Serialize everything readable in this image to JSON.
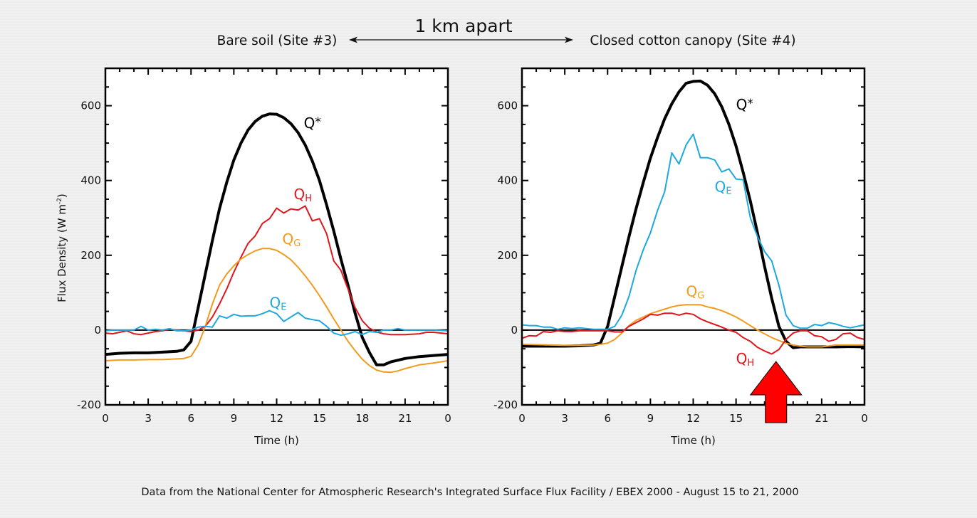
{
  "header": {
    "left_site": "Bare soil (Site #3)",
    "center": "1 km apart",
    "right_site": "Closed cotton canopy (Site #4)"
  },
  "footnote": "Data from the National Center for Atmospheric Research's Integrated Surface Flux Facility / EBEX 2000 - August 15 to 21, 2000",
  "colors": {
    "Q*": "#000000",
    "QH": "#e0161d",
    "QG": "#f39a1e",
    "QE": "#1ea8e0",
    "arrow": "#ff0000"
  },
  "chart_data": [
    {
      "type": "line",
      "title": "Bare soil (Site #3)",
      "xlabel": "Time (h)",
      "ylabel": "Flux Density (W m-2)",
      "ylabel_main": "Flux Density (W m",
      "ylabel_sup": "-2",
      "ylabel_close": ")",
      "xlim": [
        0,
        24
      ],
      "ylim": [
        -200,
        700
      ],
      "xticks": [
        0,
        3,
        6,
        9,
        12,
        15,
        18,
        21,
        24
      ],
      "xtick_labels": [
        "0",
        "3",
        "6",
        "9",
        "12",
        "15",
        "18",
        "21",
        "0"
      ],
      "yticks": [
        -200,
        0,
        200,
        400,
        600
      ],
      "ytick_labels": [
        "-200",
        "0",
        "200",
        "400",
        "600"
      ],
      "grid": false,
      "zero_line": true,
      "series": [
        {
          "name": "Q*",
          "label_main": "Q",
          "label_sub": "*",
          "label_at": [
            13.9,
            540
          ],
          "x": [
            0,
            1,
            2,
            3,
            4,
            5,
            5.5,
            6,
            6.5,
            7,
            7.5,
            8,
            8.5,
            9,
            9.5,
            10,
            10.5,
            11,
            11.5,
            12,
            12.5,
            13,
            13.5,
            14,
            14.5,
            15,
            15.5,
            16,
            16.5,
            17,
            17.5,
            18,
            18.5,
            19,
            19.5,
            20,
            21,
            22,
            23,
            24
          ],
          "y": [
            -65,
            -62,
            -61,
            -61,
            -59,
            -57,
            -53,
            -30,
            60,
            150,
            240,
            325,
            395,
            455,
            500,
            535,
            558,
            572,
            578,
            577,
            568,
            552,
            528,
            495,
            452,
            400,
            335,
            265,
            190,
            120,
            45,
            -20,
            -60,
            -93,
            -93,
            -85,
            -76,
            -71,
            -68,
            -65
          ]
        },
        {
          "name": "QH",
          "label_main": "Q",
          "label_sub": "H",
          "label_at": [
            13.2,
            350
          ],
          "x": [
            0,
            0.5,
            1,
            1.5,
            2,
            2.5,
            3,
            3.5,
            4,
            4.5,
            5,
            5.5,
            6,
            6.5,
            7,
            7.5,
            8,
            8.5,
            9,
            9.5,
            10,
            10.5,
            11,
            11.5,
            12,
            12.5,
            13,
            13.5,
            14,
            14.5,
            15,
            15.5,
            16,
            16.5,
            17,
            17.5,
            18,
            18.5,
            19,
            19.5,
            20,
            21,
            22,
            22.5,
            23,
            24
          ],
          "y": [
            -8,
            -10,
            -6,
            -2,
            -10,
            -12,
            -8,
            -4,
            -2,
            2,
            0,
            -2,
            -4,
            0,
            10,
            35,
            70,
            110,
            155,
            195,
            232,
            252,
            285,
            298,
            326,
            313,
            324,
            321,
            332,
            292,
            298,
            258,
            185,
            160,
            110,
            60,
            25,
            5,
            -5,
            -10,
            -12,
            -12,
            -10,
            -6,
            -6,
            -10
          ]
        },
        {
          "name": "QG",
          "label_main": "Q",
          "label_sub": "G",
          "label_at": [
            12.4,
            230
          ],
          "x": [
            0,
            1,
            2,
            3,
            4,
            5,
            5.5,
            6,
            6.5,
            7,
            7.5,
            8,
            8.5,
            9,
            9.5,
            10,
            10.5,
            11,
            11.5,
            12,
            12.5,
            13,
            13.5,
            14,
            14.5,
            15,
            15.5,
            16,
            16.5,
            17,
            17.5,
            18,
            18.5,
            19,
            19.5,
            20,
            20.5,
            21,
            22,
            23,
            24
          ],
          "y": [
            -82,
            -80,
            -80,
            -79,
            -79,
            -77,
            -76,
            -70,
            -40,
            10,
            70,
            120,
            150,
            172,
            190,
            202,
            212,
            218,
            218,
            213,
            202,
            188,
            168,
            145,
            120,
            92,
            62,
            30,
            0,
            -30,
            -55,
            -78,
            -95,
            -107,
            -112,
            -113,
            -109,
            -103,
            -93,
            -88,
            -82
          ]
        },
        {
          "name": "QE",
          "label_main": "Q",
          "label_sub": "E",
          "label_at": [
            11.5,
            60
          ],
          "x": [
            0,
            0.5,
            1,
            1.5,
            2,
            2.5,
            3,
            3.5,
            4,
            4.5,
            5,
            5.5,
            6,
            6.5,
            7,
            7.5,
            8,
            8.5,
            9,
            9.5,
            10,
            10.5,
            11,
            11.5,
            12,
            12.5,
            13,
            13.5,
            14,
            14.5,
            15,
            15.5,
            16,
            16.5,
            17,
            17.5,
            18,
            18.5,
            19,
            19.5,
            20,
            20.5,
            21,
            21.5,
            22,
            22.5,
            23,
            24
          ],
          "y": [
            -2,
            0,
            0,
            0,
            0,
            10,
            0,
            2,
            0,
            4,
            -2,
            -2,
            0,
            8,
            10,
            8,
            38,
            32,
            42,
            37,
            38,
            38,
            44,
            52,
            44,
            23,
            35,
            47,
            32,
            28,
            25,
            10,
            -8,
            -14,
            -10,
            -4,
            -12,
            -4,
            -6,
            0,
            0,
            4,
            0,
            0,
            0,
            0,
            0,
            -2
          ]
        }
      ],
      "annotations": []
    },
    {
      "type": "line",
      "title": "Closed cotton canopy (Site #4)",
      "xlabel": "Time (h)",
      "ylabel": "",
      "xlim": [
        0,
        24
      ],
      "ylim": [
        -200,
        700
      ],
      "xticks": [
        0,
        3,
        6,
        9,
        12,
        15,
        18,
        21,
        24
      ],
      "xtick_labels": [
        "0",
        "3",
        "6",
        "9",
        "12",
        "15",
        "18",
        "21",
        "0"
      ],
      "yticks": [
        -200,
        0,
        200,
        400,
        600
      ],
      "ytick_labels": [
        "-200",
        "0",
        "200",
        "400",
        "600"
      ],
      "grid": false,
      "zero_line": true,
      "series": [
        {
          "name": "Q*",
          "label_main": "Q",
          "label_sub": "*",
          "label_at": [
            15.0,
            590
          ],
          "x": [
            0,
            1,
            2,
            3,
            4,
            5,
            5.5,
            6,
            6.5,
            7,
            7.5,
            8,
            8.5,
            9,
            9.5,
            10,
            10.5,
            11,
            11.5,
            12,
            12.5,
            13,
            13.5,
            14,
            14.5,
            15,
            15.5,
            16,
            16.5,
            17,
            17.5,
            18,
            18.5,
            19,
            19.5,
            20,
            21,
            22,
            23,
            24
          ],
          "y": [
            -43,
            -43,
            -43,
            -43,
            -42,
            -40,
            -35,
            10,
            90,
            170,
            250,
            325,
            395,
            460,
            515,
            565,
            605,
            637,
            660,
            665,
            666,
            655,
            632,
            597,
            550,
            492,
            422,
            345,
            260,
            170,
            85,
            10,
            -30,
            -47,
            -45,
            -45,
            -45,
            -45,
            -44,
            -45
          ]
        },
        {
          "name": "QE",
          "label_main": "Q",
          "label_sub": "E",
          "label_at": [
            13.5,
            370
          ],
          "x": [
            0,
            0.5,
            1,
            1.5,
            2,
            2.5,
            3,
            3.5,
            4,
            4.5,
            5,
            5.5,
            6,
            6.5,
            7,
            7.5,
            8,
            8.5,
            9,
            9.5,
            10,
            10.5,
            11,
            11.5,
            12,
            12.5,
            13,
            13.5,
            14,
            14.5,
            15,
            15.5,
            16,
            16.5,
            17,
            17.5,
            18,
            18.5,
            19,
            19.5,
            20,
            20.5,
            21,
            21.5,
            22,
            22.5,
            23,
            23.5,
            24
          ],
          "y": [
            14,
            12,
            12,
            8,
            8,
            2,
            6,
            4,
            6,
            4,
            2,
            2,
            2,
            10,
            40,
            90,
            160,
            215,
            260,
            320,
            370,
            474,
            444,
            495,
            524,
            461,
            461,
            455,
            423,
            431,
            404,
            402,
            300,
            250,
            210,
            185,
            120,
            40,
            12,
            5,
            5,
            15,
            12,
            20,
            16,
            10,
            6,
            10,
            14
          ]
        },
        {
          "name": "QG",
          "label_main": "Q",
          "label_sub": "G",
          "label_at": [
            11.5,
            90
          ],
          "x": [
            0,
            1,
            2,
            3,
            4,
            5,
            5.5,
            6,
            6.5,
            7,
            7.5,
            8,
            8.5,
            9,
            9.5,
            10,
            10.5,
            11,
            11.5,
            12,
            12.5,
            13,
            13.5,
            14,
            14.5,
            15,
            15.5,
            16,
            16.5,
            17,
            17.5,
            18,
            18.5,
            19,
            19.5,
            20,
            20.5,
            21,
            22,
            23,
            24
          ],
          "y": [
            -38,
            -39,
            -40,
            -41,
            -41,
            -40,
            -38,
            -35,
            -25,
            -8,
            12,
            26,
            35,
            44,
            50,
            56,
            62,
            66,
            68,
            68,
            68,
            62,
            58,
            52,
            44,
            35,
            24,
            12,
            0,
            -10,
            -20,
            -28,
            -35,
            -40,
            -43,
            -45,
            -45,
            -45,
            -40,
            -40,
            -40
          ]
        },
        {
          "name": "QH",
          "label_main": "Q",
          "label_sub": "H",
          "label_at": [
            15.0,
            -90
          ],
          "x": [
            0,
            0.5,
            1,
            1.5,
            2,
            2.5,
            3,
            3.5,
            4,
            4.5,
            5,
            5.5,
            6,
            6.5,
            7,
            7.5,
            8,
            8.5,
            9,
            9.5,
            10,
            10.5,
            11,
            11.5,
            12,
            12.5,
            13,
            13.5,
            14,
            14.5,
            15,
            15.5,
            16,
            16.5,
            17,
            17.5,
            18,
            18.5,
            19,
            19.5,
            20,
            20.5,
            21,
            21.5,
            22,
            22.5,
            23,
            23.5,
            24
          ],
          "y": [
            -22,
            -15,
            -16,
            -4,
            -6,
            -2,
            -4,
            -4,
            -2,
            -2,
            -2,
            -2,
            -2,
            -5,
            -5,
            10,
            20,
            30,
            42,
            40,
            45,
            45,
            40,
            45,
            42,
            30,
            22,
            15,
            8,
            0,
            -6,
            -20,
            -30,
            -46,
            -56,
            -64,
            -52,
            -25,
            -8,
            -2,
            -2,
            -15,
            -18,
            -30,
            -25,
            -10,
            -8,
            -20,
            -25
          ]
        }
      ],
      "annotations": [
        {
          "type": "arrow",
          "direction": "up",
          "x": 17.8,
          "color": "#ff0000"
        }
      ]
    }
  ]
}
